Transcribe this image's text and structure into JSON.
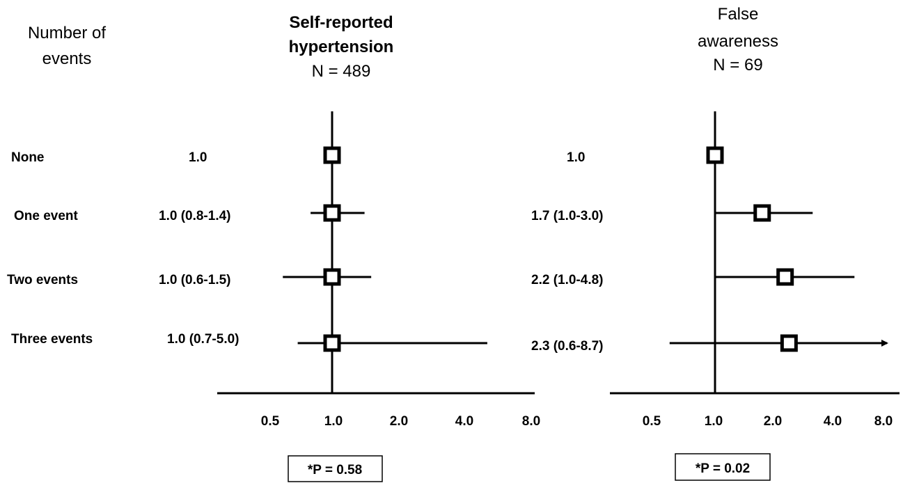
{
  "header": {
    "row_header_line1": "Number of",
    "row_header_line2": "events"
  },
  "colors": {
    "ink": "#000000",
    "background": "#ffffff"
  },
  "chart_data": [
    {
      "type": "forest",
      "title_line1": "Self-reported",
      "title_line2": "hypertension",
      "title_line3": "N = 489",
      "x_scale": "log2",
      "x_ticks": [
        "0.5",
        "1.0",
        "2.0",
        "4.0",
        "8.0"
      ],
      "xlim": [
        0.5,
        8.0
      ],
      "reference_value": 1.0,
      "p_value_label": "*P = 0.58",
      "rows": [
        {
          "label": "None",
          "estimate_label": "1.0",
          "or": 1.0,
          "lower": null,
          "upper": null,
          "upper_arrow": false
        },
        {
          "label": "One event",
          "estimate_label": "1.0 (0.8-1.4)",
          "or": 1.0,
          "lower": 0.8,
          "upper": 1.4,
          "upper_arrow": false
        },
        {
          "label": "Two events",
          "estimate_label": "1.0 (0.6-1.5)",
          "or": 1.0,
          "lower": 0.6,
          "upper": 1.5,
          "upper_arrow": false
        },
        {
          "label": "Three events",
          "estimate_label": "1.0 (0.7-5.0)",
          "or": 1.0,
          "lower": 0.7,
          "upper": 5.0,
          "upper_arrow": false
        }
      ]
    },
    {
      "type": "forest",
      "title_line1": "False",
      "title_line2": "awareness",
      "title_line3": "N = 69",
      "x_scale": "log2",
      "x_ticks": [
        "0.5",
        "1.0",
        "2.0",
        "4.0",
        "8.0"
      ],
      "xlim": [
        0.5,
        8.0
      ],
      "reference_value": 1.0,
      "p_value_label": "*P = 0.02",
      "rows": [
        {
          "label": "None",
          "estimate_label": "1.0",
          "or": 1.0,
          "lower": null,
          "upper": null,
          "upper_arrow": false
        },
        {
          "label": "One event",
          "estimate_label": "1.7 (1.0-3.0)",
          "or": 1.7,
          "lower": 1.0,
          "upper": 3.0,
          "upper_arrow": false
        },
        {
          "label": "Two events",
          "estimate_label": "2.2 (1.0-4.8)",
          "or": 2.2,
          "lower": 1.0,
          "upper": 4.8,
          "upper_arrow": false
        },
        {
          "label": "Three events",
          "estimate_label": "2.3 (0.6-8.7)",
          "or": 2.3,
          "lower": 0.6,
          "upper": 8.7,
          "upper_arrow": true
        }
      ]
    }
  ]
}
